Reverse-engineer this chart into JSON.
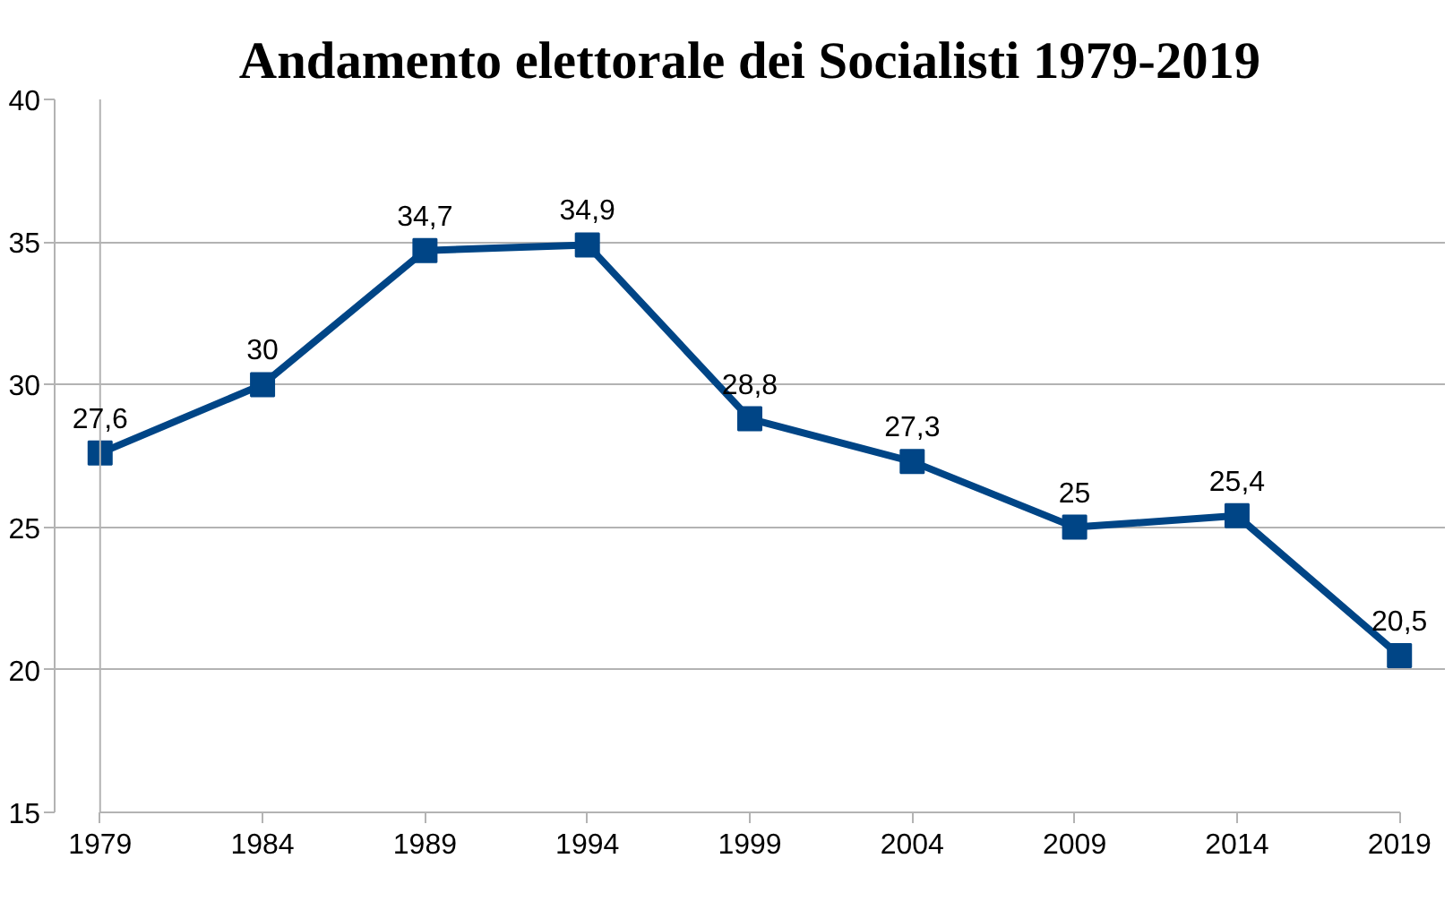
{
  "chart_data": {
    "type": "line",
    "title": "Andamento elettorale dei Socialisti 1979-2019",
    "x": [
      1979,
      1984,
      1989,
      1994,
      1999,
      2004,
      2009,
      2014,
      2019
    ],
    "series": [
      {
        "color": "#004586",
        "values": [
          27.6,
          30,
          34.7,
          34.9,
          28.8,
          27.3,
          25,
          25.4,
          20.5
        ],
        "value_labels": [
          "27,6",
          "30",
          "34,7",
          "34,9",
          "28,8",
          "27,3",
          "25",
          "25,4",
          "20,5"
        ]
      }
    ],
    "xlim": [
      1979,
      2019
    ],
    "xticks": [
      1979,
      1984,
      1989,
      1994,
      1999,
      2004,
      2009,
      2014,
      2019
    ],
    "ylim": [
      15,
      40
    ],
    "yticks": [
      15,
      20,
      25,
      30,
      35,
      40
    ],
    "grid": "y",
    "marker": "square",
    "line_style": "solid"
  }
}
